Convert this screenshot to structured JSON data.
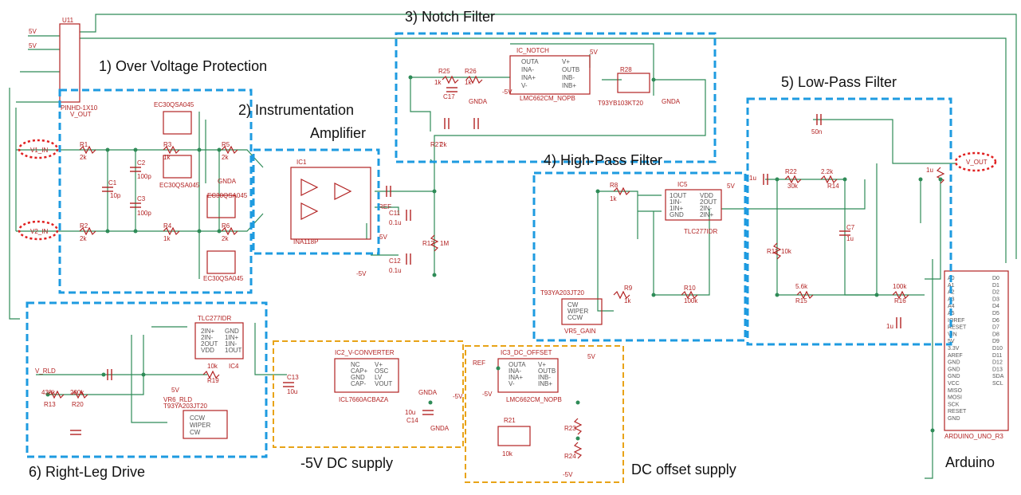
{
  "blocks": {
    "ovp": "1) Over Voltage Protection",
    "ina_line1": "2) Instrumentation",
    "ina_line2": "Amplifier",
    "notch": "3) Notch Filter",
    "hpf": "4) High-Pass Filter",
    "lpf": "5) Low-Pass Filter",
    "rld": "6) Right-Leg Drive",
    "neg5": "-5V DC supply",
    "dcoff": "DC offset supply",
    "arduino": "Arduino"
  },
  "colors": {
    "wire": "#2e8b57",
    "part": "#b22222",
    "blue_dash": "#1e9be0",
    "orange_dash": "#e8a317",
    "highlight": "#e02020"
  },
  "nets": {
    "v1_in": "V1_IN",
    "v2_in": "V2_IN",
    "v_out": "V_OUT",
    "v_rld": "V_RLD",
    "ref": "REF",
    "vout_hdr": "V_OUT",
    "p5v": "5V",
    "p5v_b": "5V",
    "gnda": "GNDA",
    "neg5v": "-5V"
  },
  "parts": {
    "pinhd": "PINHD-1X10",
    "u11": "U11",
    "ec30_a": "EC30QSA045",
    "ec30_b": "EC30QSA045",
    "ec30_c": "EC30QSA045",
    "ec30_d": "EC30QSA045",
    "ic1": "IC1",
    "ina118": "INA118P",
    "ic_notch": "IC_NOTCH",
    "lmc_notch": "LMC662CM_NOPB",
    "r28": "R28",
    "t93_notch": "T93YB103KT20",
    "ic5": "IC5",
    "tlc_hpf": "TLC277IDR",
    "t93_gain": "T93YA203JT20",
    "vr5": "VR5_GAIN",
    "tlc_rld": "TLC277IDR",
    "ic4": "IC4",
    "vr6": "VR6_RLD",
    "t93_rld": "T93YA203JT20",
    "ic2": "IC2_V-CONVERTER",
    "icl": "ICL7660ACBAZA",
    "ic3": "IC3_DC_OFFSET",
    "lmc_dc": "LMC662CM_NOPB",
    "r21": "R21",
    "arduino": "ARDUINO_UNO_R3"
  },
  "resistors": {
    "r1": "R1",
    "r1v": "2k",
    "r2": "R2",
    "r2v": "2k",
    "r3": "R3",
    "r3v": "1k",
    "r4": "R4",
    "r4v": "1k",
    "r5": "R5",
    "r5v": "2k",
    "r6": "R6",
    "r6v": "2k",
    "r8": "R8",
    "r8v": "1k",
    "r9": "R9",
    "r9v": "1k",
    "r10": "R10",
    "r10v": "100k",
    "r11": "R11",
    "r11v": "10k",
    "r12": "R12",
    "r12v": "1M",
    "r13": "R13",
    "r13v": "430k",
    "r14": "R14",
    "r14v": "2.2k",
    "r15": "R15",
    "r15v": "5.6k",
    "r16": "R16",
    "r16v": "100k",
    "r19": "R19",
    "r19v": "10k",
    "r20": "R20",
    "r20v": "200k",
    "r22": "R22",
    "r22v": "30k",
    "r25": "R25",
    "r25v": "1k",
    "r26": "R26",
    "r26v": "1k",
    "r27": "R27",
    "r27v": "2k",
    "r21v": "10k",
    "r23": "R23",
    "r24": "R24"
  },
  "caps": {
    "c1": "C1",
    "c1v": "10p",
    "c2": "C2",
    "c2v": "100p",
    "c3": "C3",
    "c3v": "100p",
    "c7": "C7",
    "c7v": "1u",
    "c11": "C11",
    "c11v": "0.1u",
    "c12": "C12",
    "c12v": "0.1u",
    "c13": "C13",
    "c13v": "10u",
    "c14": "C14",
    "c14v": "10u",
    "c17": "C17",
    "cx1": "1u",
    "cx2": "1u",
    "cx3": "1u",
    "cx4": "50n"
  },
  "pins": {
    "opa": [
      "OUTA",
      "INA-",
      "INA+",
      "V-"
    ],
    "opb": [
      "V+",
      "OUTB",
      "INB-",
      "INB+"
    ],
    "tlc_l": [
      "1OUT",
      "1IN-",
      "1IN+",
      "GND"
    ],
    "tlc_r": [
      "VDD",
      "2OUT",
      "2IN-",
      "2IN+"
    ],
    "rld_l": [
      "2IN+",
      "2IN-",
      "2OUT",
      "VDD"
    ],
    "rld_r": [
      "GND",
      "1IN+",
      "1IN-",
      "1OUT"
    ],
    "icl_l": [
      "NC",
      "CAP+",
      "GND",
      "CAP-"
    ],
    "icl_r": [
      "V+",
      "OSC",
      "LV",
      "VOUT"
    ],
    "pot": [
      "CW",
      "WIPER",
      "CCW"
    ],
    "ard_l": [
      "A0",
      "A1",
      "A2",
      "A3",
      "A4",
      "A5",
      "IOREF",
      "RESET",
      "VIN",
      "5V",
      "3.3V",
      "AREF",
      "GND",
      "GND",
      "GND",
      "VCC",
      "MISO",
      "MOSI",
      "SCK",
      "RESET",
      "GND"
    ],
    "ard_r": [
      "D0",
      "D1",
      "D2",
      "D3",
      "D4",
      "D5",
      "D6",
      "D7",
      "D8",
      "D9",
      "D10",
      "D11",
      "D12",
      "D13",
      "SDA",
      "SCL"
    ]
  }
}
